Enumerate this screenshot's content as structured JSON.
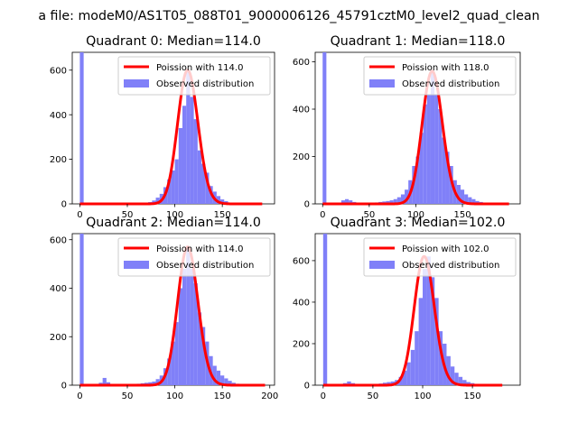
{
  "suptitle": "a file: modeM0/AS1T05_088T01_9000006126_45791cztM0_level2_quad_clean",
  "colors": {
    "hist": "#8080f8",
    "poisson": "#ff0000"
  },
  "chart_data": [
    {
      "type": "bar",
      "title": "Quadrant 0: Median=114.0",
      "xlim": [
        -8,
        205
      ],
      "ylim": [
        0,
        680
      ],
      "xticks": [
        0,
        50,
        100,
        150
      ],
      "yticks": [
        0,
        200,
        400,
        600
      ],
      "legend": {
        "line_label": "Poission with 114.0",
        "bar_label": "Observed distribution",
        "placement": "upper right"
      },
      "median": 114.0,
      "bin_width": 4,
      "hist": [
        [
          0,
          680
        ],
        [
          60,
          3
        ],
        [
          64,
          3
        ],
        [
          68,
          5
        ],
        [
          72,
          8
        ],
        [
          76,
          15
        ],
        [
          80,
          28
        ],
        [
          84,
          45
        ],
        [
          88,
          75
        ],
        [
          92,
          110
        ],
        [
          96,
          150
        ],
        [
          100,
          200
        ],
        [
          104,
          340
        ],
        [
          108,
          440
        ],
        [
          112,
          600
        ],
        [
          116,
          480
        ],
        [
          120,
          380
        ],
        [
          124,
          240
        ],
        [
          128,
          180
        ],
        [
          132,
          140
        ],
        [
          136,
          80
        ],
        [
          140,
          55
        ],
        [
          144,
          35
        ],
        [
          148,
          20
        ],
        [
          152,
          12
        ],
        [
          156,
          6
        ],
        [
          160,
          4
        ],
        [
          164,
          3
        ],
        [
          168,
          2
        ],
        [
          172,
          2
        ]
      ],
      "poisson_range": [
        0,
        192
      ]
    },
    {
      "type": "bar",
      "title": "Quadrant 1: Median=118.0",
      "xlim": [
        -8,
        212
      ],
      "ylim": [
        0,
        640
      ],
      "xticks": [
        0,
        50,
        100,
        150
      ],
      "yticks": [
        0,
        200,
        400,
        600
      ],
      "legend": {
        "line_label": "Poission with 118.0",
        "bar_label": "Observed distribution",
        "placement": "upper right"
      },
      "median": 118.0,
      "bin_width": 4,
      "hist": [
        [
          0,
          640
        ],
        [
          20,
          15
        ],
        [
          24,
          20
        ],
        [
          28,
          15
        ],
        [
          32,
          8
        ],
        [
          36,
          5
        ],
        [
          40,
          4
        ],
        [
          48,
          3
        ],
        [
          52,
          4
        ],
        [
          56,
          6
        ],
        [
          60,
          8
        ],
        [
          64,
          10
        ],
        [
          68,
          12
        ],
        [
          72,
          15
        ],
        [
          76,
          20
        ],
        [
          80,
          28
        ],
        [
          84,
          40
        ],
        [
          88,
          60
        ],
        [
          92,
          100
        ],
        [
          96,
          160
        ],
        [
          100,
          200
        ],
        [
          104,
          300
        ],
        [
          108,
          420
        ],
        [
          112,
          460
        ],
        [
          116,
          560
        ],
        [
          120,
          460
        ],
        [
          124,
          400
        ],
        [
          128,
          280
        ],
        [
          132,
          220
        ],
        [
          136,
          160
        ],
        [
          140,
          100
        ],
        [
          144,
          80
        ],
        [
          148,
          60
        ],
        [
          152,
          40
        ],
        [
          156,
          28
        ],
        [
          160,
          20
        ],
        [
          164,
          12
        ],
        [
          168,
          8
        ],
        [
          172,
          4
        ]
      ],
      "poisson_range": [
        0,
        200
      ]
    },
    {
      "type": "bar",
      "title": "Quadrant 2: Median=114.0",
      "xlim": [
        -8,
        205
      ],
      "ylim": [
        0,
        625
      ],
      "xticks": [
        0,
        50,
        100,
        150,
        200
      ],
      "yticks": [
        0,
        200,
        400,
        600
      ],
      "legend": {
        "line_label": "Poission with 114.0",
        "bar_label": "Observed distribution",
        "placement": "upper right"
      },
      "median": 114.0,
      "bin_width": 4,
      "hist": [
        [
          0,
          625
        ],
        [
          20,
          10
        ],
        [
          24,
          30
        ],
        [
          28,
          12
        ],
        [
          32,
          5
        ],
        [
          36,
          3
        ],
        [
          48,
          3
        ],
        [
          52,
          4
        ],
        [
          56,
          5
        ],
        [
          60,
          6
        ],
        [
          64,
          8
        ],
        [
          68,
          10
        ],
        [
          72,
          12
        ],
        [
          76,
          15
        ],
        [
          80,
          25
        ],
        [
          84,
          40
        ],
        [
          88,
          70
        ],
        [
          92,
          110
        ],
        [
          96,
          180
        ],
        [
          100,
          260
        ],
        [
          104,
          400
        ],
        [
          108,
          480
        ],
        [
          112,
          570
        ],
        [
          116,
          480
        ],
        [
          120,
          420
        ],
        [
          124,
          300
        ],
        [
          128,
          240
        ],
        [
          132,
          180
        ],
        [
          136,
          120
        ],
        [
          140,
          80
        ],
        [
          144,
          60
        ],
        [
          148,
          40
        ],
        [
          152,
          28
        ],
        [
          156,
          18
        ],
        [
          160,
          10
        ],
        [
          164,
          6
        ],
        [
          168,
          4
        ],
        [
          172,
          3
        ]
      ],
      "poisson_range": [
        0,
        195
      ]
    },
    {
      "type": "bar",
      "title": "Quadrant 3: Median=102.0",
      "xlim": [
        -8,
        198
      ],
      "ylim": [
        0,
        730
      ],
      "xticks": [
        0,
        50,
        100,
        150
      ],
      "yticks": [
        0,
        200,
        400,
        600
      ],
      "legend": {
        "line_label": "Poission with 102.0",
        "bar_label": "Observed distribution",
        "placement": "upper right"
      },
      "median": 102.0,
      "bin_width": 4,
      "hist": [
        [
          0,
          730
        ],
        [
          20,
          10
        ],
        [
          24,
          18
        ],
        [
          28,
          10
        ],
        [
          32,
          6
        ],
        [
          36,
          5
        ],
        [
          40,
          4
        ],
        [
          44,
          4
        ],
        [
          48,
          5
        ],
        [
          52,
          6
        ],
        [
          56,
          8
        ],
        [
          60,
          12
        ],
        [
          64,
          15
        ],
        [
          68,
          18
        ],
        [
          72,
          25
        ],
        [
          76,
          40
        ],
        [
          80,
          70
        ],
        [
          84,
          110
        ],
        [
          88,
          170
        ],
        [
          92,
          260
        ],
        [
          96,
          420
        ],
        [
          100,
          560
        ],
        [
          104,
          620
        ],
        [
          108,
          520
        ],
        [
          112,
          420
        ],
        [
          116,
          260
        ],
        [
          120,
          200
        ],
        [
          124,
          140
        ],
        [
          128,
          90
        ],
        [
          132,
          60
        ],
        [
          136,
          40
        ],
        [
          140,
          25
        ],
        [
          144,
          15
        ],
        [
          148,
          10
        ],
        [
          152,
          6
        ],
        [
          156,
          4
        ],
        [
          160,
          3
        ]
      ],
      "poisson_range": [
        0,
        180
      ]
    }
  ]
}
